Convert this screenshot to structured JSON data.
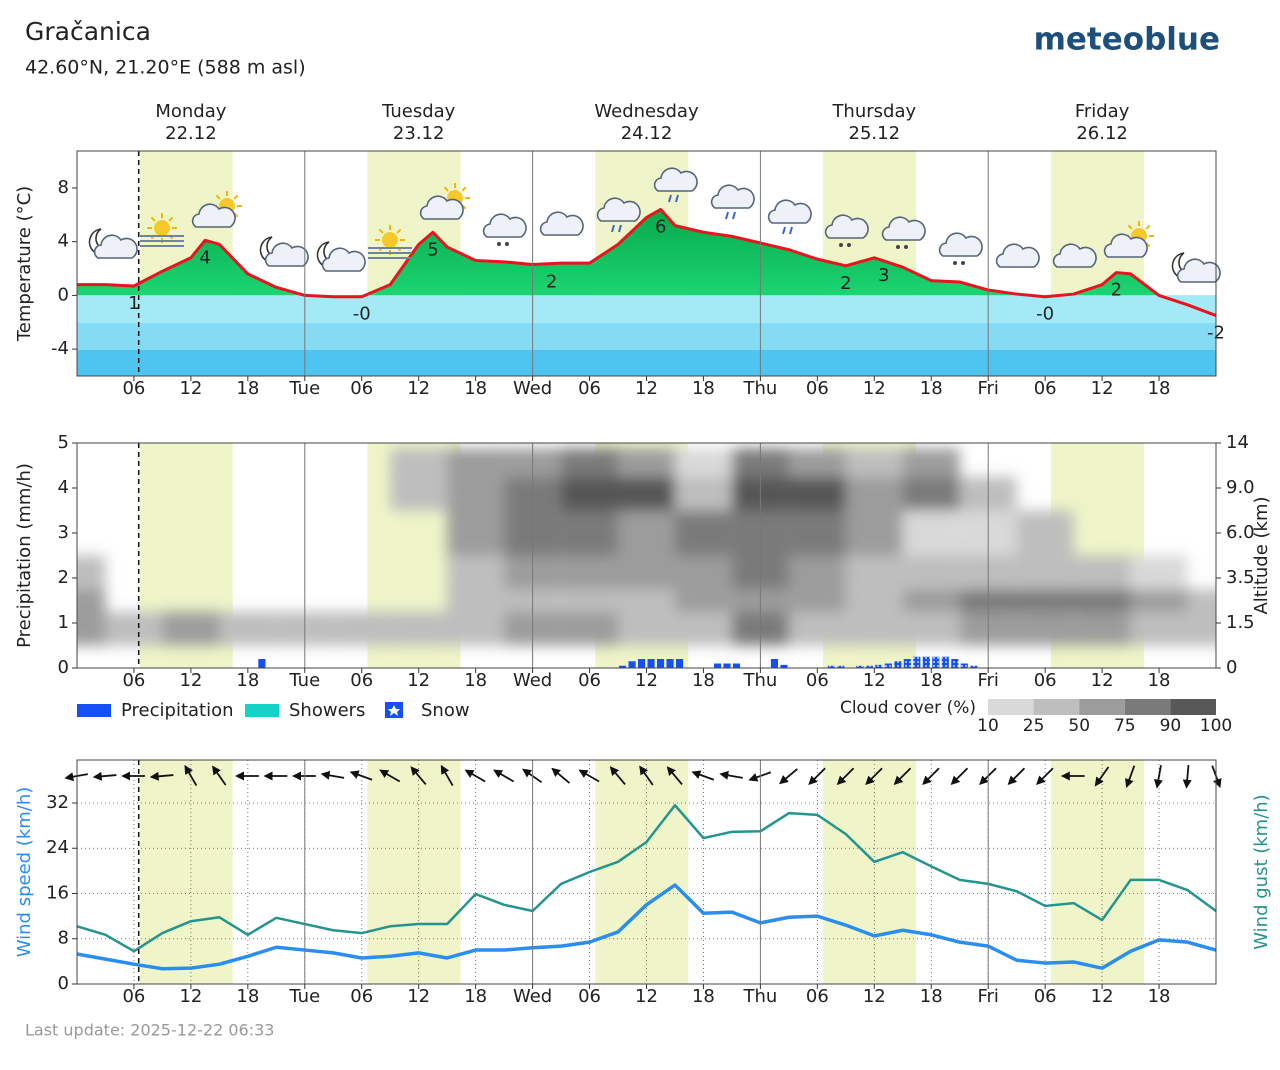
{
  "title": "Gračanica",
  "subtitle": "42.60°N, 21.20°E (588 m asl)",
  "logo": "meteoblue",
  "footer": "Last update: 2025-12-22 06:33",
  "days": [
    {
      "name": "Monday",
      "date": "22.12"
    },
    {
      "name": "Tuesday",
      "date": "23.12"
    },
    {
      "name": "Wednesday",
      "date": "24.12"
    },
    {
      "name": "Thursday",
      "date": "25.12"
    },
    {
      "name": "Friday",
      "date": "26.12"
    }
  ],
  "daylight": [
    [
      6.6,
      16.4
    ],
    [
      30.6,
      40.4
    ],
    [
      54.6,
      64.4
    ],
    [
      78.6,
      88.4
    ],
    [
      102.6,
      112.4
    ]
  ],
  "now": 6.5,
  "chart_data": [
    {
      "type": "area",
      "ylabel": "Temperature (°C)",
      "color": "#e8141e",
      "x": [
        0,
        3,
        6,
        9,
        12,
        13.5,
        15,
        18,
        21,
        24,
        27,
        30,
        33,
        36,
        37.5,
        39,
        42,
        45,
        48,
        51,
        54,
        57,
        60,
        61.5,
        63,
        66,
        69,
        72,
        75,
        78,
        81,
        84,
        87,
        90,
        93,
        96,
        99,
        102,
        105,
        108,
        109.5,
        111,
        114,
        117,
        120
      ],
      "values": [
        0.8,
        0.8,
        0.7,
        1.8,
        2.8,
        4.1,
        3.8,
        1.6,
        0.6,
        0,
        -0.1,
        -0.1,
        0.8,
        3.8,
        4.7,
        3.6,
        2.6,
        2.5,
        2.3,
        2.4,
        2.4,
        3.8,
        5.8,
        6.4,
        5.2,
        4.7,
        4.4,
        3.9,
        3.4,
        2.7,
        2.2,
        2.8,
        2.1,
        1.1,
        1.0,
        0.4,
        0.1,
        -0.1,
        0.1,
        0.8,
        1.7,
        1.6,
        0,
        -0.7,
        -1.5
      ],
      "extremes": {
        "x": [
          6,
          13.5,
          30,
          37.5,
          50,
          61.5,
          81,
          85,
          102,
          109.5,
          120
        ],
        "values": [
          0.7,
          4.1,
          -0.1,
          4.7,
          2.3,
          6.4,
          2.2,
          2.8,
          -0.1,
          1.7,
          -1.5
        ],
        "value_labels": [
          "1",
          "4",
          "-0",
          "5",
          "2",
          "6",
          "2",
          "3",
          "-0",
          "2",
          "-2"
        ]
      },
      "xlim": [
        0,
        120
      ],
      "ylim": [
        -6,
        10.75
      ],
      "yticks": [
        -4,
        0,
        4,
        8
      ],
      "grid": false,
      "xticks": [
        {
          "value": 6,
          "label": "06"
        },
        {
          "value": 12,
          "label": "12"
        },
        {
          "value": 18,
          "label": "18"
        },
        {
          "value": 24,
          "label": "Tue"
        },
        {
          "value": 30,
          "label": "06"
        },
        {
          "value": 36,
          "label": "12"
        },
        {
          "value": 42,
          "label": "18"
        },
        {
          "value": 48,
          "label": "Wed"
        },
        {
          "value": 54,
          "label": "06"
        },
        {
          "value": 60,
          "label": "12"
        },
        {
          "value": 66,
          "label": "18"
        },
        {
          "value": 72,
          "label": "Thu"
        },
        {
          "value": 78,
          "label": "06"
        },
        {
          "value": 84,
          "label": "12"
        },
        {
          "value": 90,
          "label": "18"
        },
        {
          "value": 96,
          "label": "Fri"
        },
        {
          "value": 102,
          "label": "06"
        },
        {
          "value": 108,
          "label": "12"
        },
        {
          "value": 114,
          "label": "18"
        }
      ]
    },
    {
      "type": "bar",
      "ylabel": "Precipitation (mm/h)",
      "y2label": "Altitude (km)",
      "series": [
        {
          "name": "Precipitation",
          "color": "#1450f5",
          "x": [
            19,
            57,
            58,
            59,
            60,
            61,
            62,
            63,
            67,
            68,
            69,
            73,
            74
          ],
          "values": [
            0.2,
            0.05,
            0.15,
            0.2,
            0.2,
            0.2,
            0.2,
            0.2,
            0.1,
            0.1,
            0.1,
            0.2,
            0.07
          ]
        },
        {
          "name": "Showers",
          "color": "#14d2c8",
          "x": [],
          "values": []
        },
        {
          "name": "Snow",
          "color": "#1450f5",
          "x": [
            79,
            80,
            82,
            83,
            84,
            85,
            86,
            87,
            88,
            89,
            90,
            91,
            92,
            93,
            94
          ],
          "values": [
            0.05,
            0.05,
            0.05,
            0.05,
            0.07,
            0.1,
            0.15,
            0.2,
            0.25,
            0.25,
            0.25,
            0.25,
            0.2,
            0.1,
            0.05
          ]
        }
      ],
      "cloud_cover": {
        "title": "Cloud cover (%)",
        "levels": [
          10,
          25,
          50,
          75,
          90,
          100
        ],
        "colors": [
          "#d9d9d9",
          "#bebebe",
          "#9c9c9c",
          "#7a7a7a",
          "#575757"
        ],
        "x": [
          0,
          6,
          12,
          18,
          24,
          30,
          36,
          42,
          48,
          54,
          60,
          66,
          72,
          78,
          84,
          90,
          96,
          102,
          108,
          114,
          120
        ],
        "altitude": [
          1.5,
          2.5,
          3.5,
          6,
          9,
          11.5
        ],
        "values": [
          [
            70,
            40,
            50,
            35,
            35,
            40,
            45,
            30,
            60,
            60,
            40,
            40,
            75,
            40,
            35,
            40,
            50,
            60,
            60,
            45,
            40
          ],
          [
            55,
            0,
            0,
            0,
            0,
            0,
            0,
            25,
            35,
            45,
            45,
            50,
            70,
            50,
            45,
            70,
            75,
            80,
            75,
            55,
            35
          ],
          [
            30,
            0,
            0,
            0,
            0,
            0,
            0,
            40,
            50,
            60,
            70,
            60,
            75,
            50,
            40,
            35,
            35,
            30,
            25,
            20,
            0
          ],
          [
            0,
            0,
            0,
            0,
            0,
            0,
            0,
            50,
            75,
            80,
            60,
            75,
            85,
            85,
            50,
            20,
            20,
            25,
            0,
            0,
            0
          ],
          [
            0,
            0,
            0,
            0,
            0,
            0,
            40,
            60,
            85,
            90,
            95,
            40,
            90,
            95,
            60,
            75,
            30,
            0,
            0,
            0,
            0
          ],
          [
            0,
            0,
            0,
            0,
            0,
            0,
            30,
            50,
            60,
            75,
            50,
            20,
            75,
            60,
            40,
            50,
            0,
            0,
            0,
            0,
            0
          ]
        ]
      },
      "xlim": [
        0,
        120
      ],
      "ylim": [
        0,
        5
      ],
      "yticks": [
        0,
        1,
        2,
        3,
        4,
        5
      ],
      "y2lim": [
        0,
        14
      ],
      "y2ticks": [
        0,
        1.5,
        3.5,
        {
          "value": 6,
          "label": "6.0"
        },
        {
          "value": 9,
          "label": "9.0"
        },
        14
      ],
      "grid": false,
      "xticks": [
        {
          "value": 6,
          "label": "06"
        },
        {
          "value": 12,
          "label": "12"
        },
        {
          "value": 18,
          "label": "18"
        },
        {
          "value": 24,
          "label": "Tue"
        },
        {
          "value": 30,
          "label": "06"
        },
        {
          "value": 36,
          "label": "12"
        },
        {
          "value": 42,
          "label": "18"
        },
        {
          "value": 48,
          "label": "Wed"
        },
        {
          "value": 54,
          "label": "06"
        },
        {
          "value": 60,
          "label": "12"
        },
        {
          "value": 66,
          "label": "18"
        },
        {
          "value": 72,
          "label": "Thu"
        },
        {
          "value": 78,
          "label": "06"
        },
        {
          "value": 84,
          "label": "12"
        },
        {
          "value": 90,
          "label": "18"
        },
        {
          "value": 96,
          "label": "Fri"
        },
        {
          "value": 102,
          "label": "06"
        },
        {
          "value": 108,
          "label": "12"
        },
        {
          "value": 114,
          "label": "18"
        }
      ]
    },
    {
      "type": "line",
      "ylabel": "Wind speed (km/h)",
      "y2label": "Wind gust (km/h)",
      "x": [
        0,
        3,
        6,
        9,
        12,
        15,
        18,
        21,
        24,
        27,
        30,
        33,
        36,
        39,
        42,
        45,
        48,
        51,
        54,
        57,
        60,
        63,
        66,
        69,
        72,
        75,
        78,
        81,
        84,
        87,
        90,
        93,
        96,
        99,
        102,
        105,
        108,
        111,
        114,
        117,
        120
      ],
      "series": [
        {
          "color": "#2a8ef0",
          "values": [
            5.3,
            4.4,
            3.5,
            2.7,
            2.8,
            3.5,
            4.9,
            6.5,
            6.0,
            5.5,
            4.6,
            4.9,
            5.5,
            4.6,
            6.0,
            6.0,
            6.4,
            6.7,
            7.4,
            9.2,
            14.0,
            17.5,
            12.5,
            12.7,
            10.8,
            11.8,
            12.0,
            10.4,
            8.5,
            9.5,
            8.7,
            7.4,
            6.7,
            4.2,
            3.7,
            3.9,
            2.8,
            5.8,
            7.8,
            7.4,
            6.0
          ]
        },
        {
          "color": "#24948e",
          "values": [
            10.2,
            8.7,
            5.8,
            9.0,
            11.1,
            11.8,
            8.7,
            11.7,
            10.6,
            9.5,
            9.0,
            10.2,
            10.6,
            10.6,
            15.9,
            14.0,
            12.9,
            17.7,
            19.8,
            21.6,
            25.1,
            31.6,
            25.8,
            26.9,
            27.0,
            30.2,
            29.9,
            26.5,
            21.6,
            23.3,
            20.8,
            18.4,
            17.7,
            16.4,
            13.8,
            14.3,
            11.3,
            18.4,
            18.4,
            16.6,
            12.9
          ]
        }
      ],
      "wind_direction": [
        260,
        265,
        270,
        265,
        330,
        325,
        270,
        270,
        270,
        280,
        290,
        300,
        320,
        330,
        300,
        300,
        305,
        310,
        300,
        320,
        325,
        320,
        290,
        280,
        250,
        230,
        225,
        225,
        225,
        225,
        225,
        225,
        225,
        225,
        225,
        270,
        215,
        200,
        190,
        185,
        160
      ],
      "xlim": [
        0,
        120
      ],
      "ylim": [
        0,
        39.6
      ],
      "yticks": [
        0,
        8,
        16,
        24,
        32
      ],
      "grid": true,
      "xticks": [
        {
          "value": 6,
          "label": "06"
        },
        {
          "value": 12,
          "label": "12"
        },
        {
          "value": 18,
          "label": "18"
        },
        {
          "value": 24,
          "label": "Tue"
        },
        {
          "value": 30,
          "label": "06"
        },
        {
          "value": 36,
          "label": "12"
        },
        {
          "value": 42,
          "label": "18"
        },
        {
          "value": 48,
          "label": "Wed"
        },
        {
          "value": 54,
          "label": "06"
        },
        {
          "value": 60,
          "label": "12"
        },
        {
          "value": 66,
          "label": "18"
        },
        {
          "value": 72,
          "label": "Thu"
        },
        {
          "value": 78,
          "label": "06"
        },
        {
          "value": 84,
          "label": "12"
        },
        {
          "value": 90,
          "label": "18"
        },
        {
          "value": 96,
          "label": "Fri"
        },
        {
          "value": 102,
          "label": "06"
        },
        {
          "value": 108,
          "label": "12"
        },
        {
          "value": 114,
          "label": "18"
        }
      ]
    }
  ]
}
